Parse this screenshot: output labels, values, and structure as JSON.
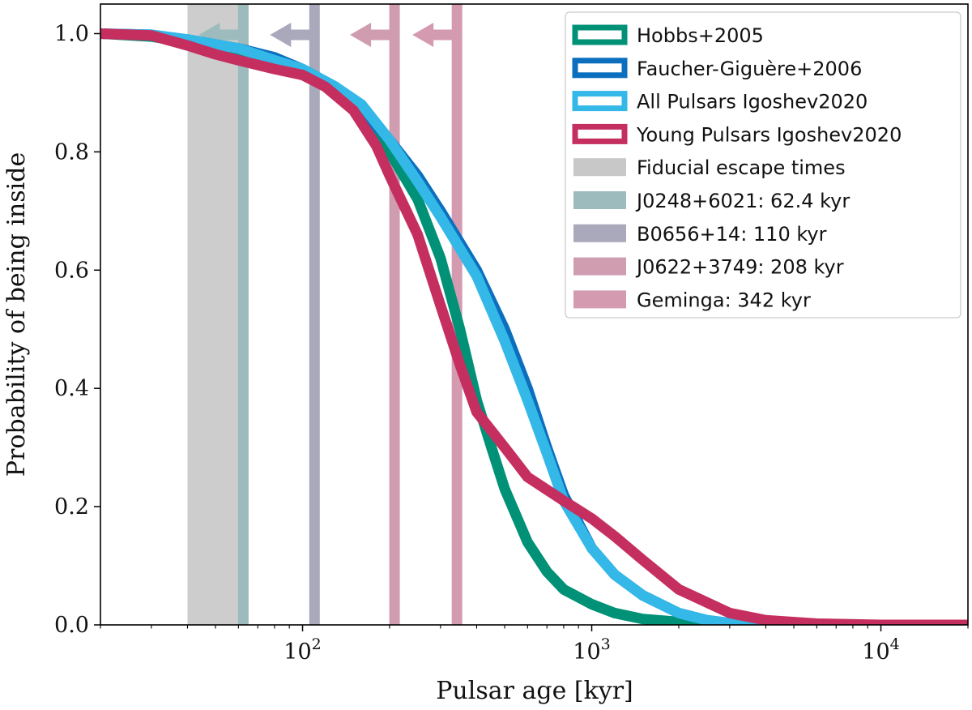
{
  "chart_data": {
    "type": "line",
    "xscale": "log",
    "xlim": [
      20,
      20000
    ],
    "ylim": [
      0.0,
      1.05
    ],
    "xlabel": "Pulsar age [kyr]",
    "ylabel": "Probability of being inside",
    "x_ticks": [
      {
        "value": 100,
        "base": "10",
        "exp": "2"
      },
      {
        "value": 1000,
        "base": "10",
        "exp": "3"
      },
      {
        "value": 10000,
        "base": "10",
        "exp": "4"
      }
    ],
    "y_ticks": [
      {
        "value": 0.0,
        "label": "0.0"
      },
      {
        "value": 0.2,
        "label": "0.2"
      },
      {
        "value": 0.4,
        "label": "0.4"
      },
      {
        "value": 0.6,
        "label": "0.6"
      },
      {
        "value": 0.8,
        "label": "0.8"
      },
      {
        "value": 1.0,
        "label": "1.0"
      }
    ],
    "series": [
      {
        "name": "Hobbs+2005",
        "color": "#009177",
        "x": [
          20,
          30,
          40,
          60,
          80,
          100,
          130,
          160,
          200,
          250,
          300,
          350,
          400,
          450,
          500,
          600,
          700,
          800,
          1000,
          1200,
          1500,
          2000,
          2500,
          3000,
          4000,
          6000,
          20000
        ],
        "y": [
          1.0,
          0.995,
          0.985,
          0.965,
          0.945,
          0.93,
          0.905,
          0.87,
          0.8,
          0.72,
          0.62,
          0.5,
          0.38,
          0.3,
          0.23,
          0.14,
          0.09,
          0.06,
          0.035,
          0.02,
          0.01,
          0.005,
          0.002,
          0.001,
          0.0,
          0.0,
          0.0
        ]
      },
      {
        "name": "Faucher-Giguère+2006",
        "color": "#0b6fbe",
        "x": [
          20,
          30,
          40,
          60,
          80,
          100,
          130,
          160,
          200,
          250,
          300,
          400,
          500,
          600,
          700,
          800,
          1000,
          1200,
          1500,
          2000,
          2500,
          3000,
          4000,
          5000,
          20000
        ],
        "y": [
          1.0,
          0.998,
          0.99,
          0.975,
          0.96,
          0.94,
          0.91,
          0.87,
          0.82,
          0.76,
          0.7,
          0.6,
          0.5,
          0.4,
          0.3,
          0.22,
          0.13,
          0.085,
          0.05,
          0.02,
          0.008,
          0.003,
          0.001,
          0.0,
          0.0
        ]
      },
      {
        "name": "All Pulsars Igoshev2020",
        "color": "#33b8e8",
        "x": [
          20,
          30,
          40,
          60,
          80,
          100,
          130,
          160,
          200,
          250,
          300,
          400,
          500,
          600,
          700,
          800,
          1000,
          1200,
          1500,
          2000,
          2500,
          3000,
          4000,
          5000,
          20000
        ],
        "y": [
          1.0,
          0.998,
          0.99,
          0.975,
          0.955,
          0.94,
          0.91,
          0.88,
          0.82,
          0.75,
          0.69,
          0.59,
          0.48,
          0.38,
          0.29,
          0.21,
          0.13,
          0.085,
          0.05,
          0.02,
          0.008,
          0.003,
          0.001,
          0.0,
          0.0
        ]
      },
      {
        "name": "Young Pulsars Igoshev2020",
        "color": "#c42f60",
        "x": [
          20,
          30,
          40,
          50,
          60,
          80,
          100,
          120,
          150,
          180,
          200,
          250,
          300,
          350,
          400,
          500,
          600,
          800,
          1000,
          1200,
          1500,
          2000,
          3000,
          4000,
          6000,
          10000,
          20000
        ],
        "y": [
          1.0,
          0.997,
          0.98,
          0.965,
          0.955,
          0.94,
          0.93,
          0.91,
          0.87,
          0.81,
          0.76,
          0.66,
          0.54,
          0.44,
          0.36,
          0.3,
          0.25,
          0.21,
          0.18,
          0.15,
          0.11,
          0.06,
          0.02,
          0.008,
          0.002,
          0.0,
          0.0
        ]
      }
    ],
    "fiducial_band": {
      "name": "Fiducial escape times",
      "x_range": [
        40,
        64
      ],
      "color": "#c8c8c8"
    },
    "vlines": [
      {
        "name": "J0248+6021: 62.4 kyr",
        "x": 62.4,
        "color": "#9dbbbd"
      },
      {
        "name": "B0656+14: 110 kyr",
        "x": 110,
        "color": "#a9a9bb"
      },
      {
        "name": "J0622+3749: 208 kyr",
        "x": 208,
        "color": "#cf9cb0"
      },
      {
        "name": "Geminga: 342 kyr",
        "x": 342,
        "color": "#d49ab0"
      }
    ],
    "legend_position": "top-right"
  }
}
